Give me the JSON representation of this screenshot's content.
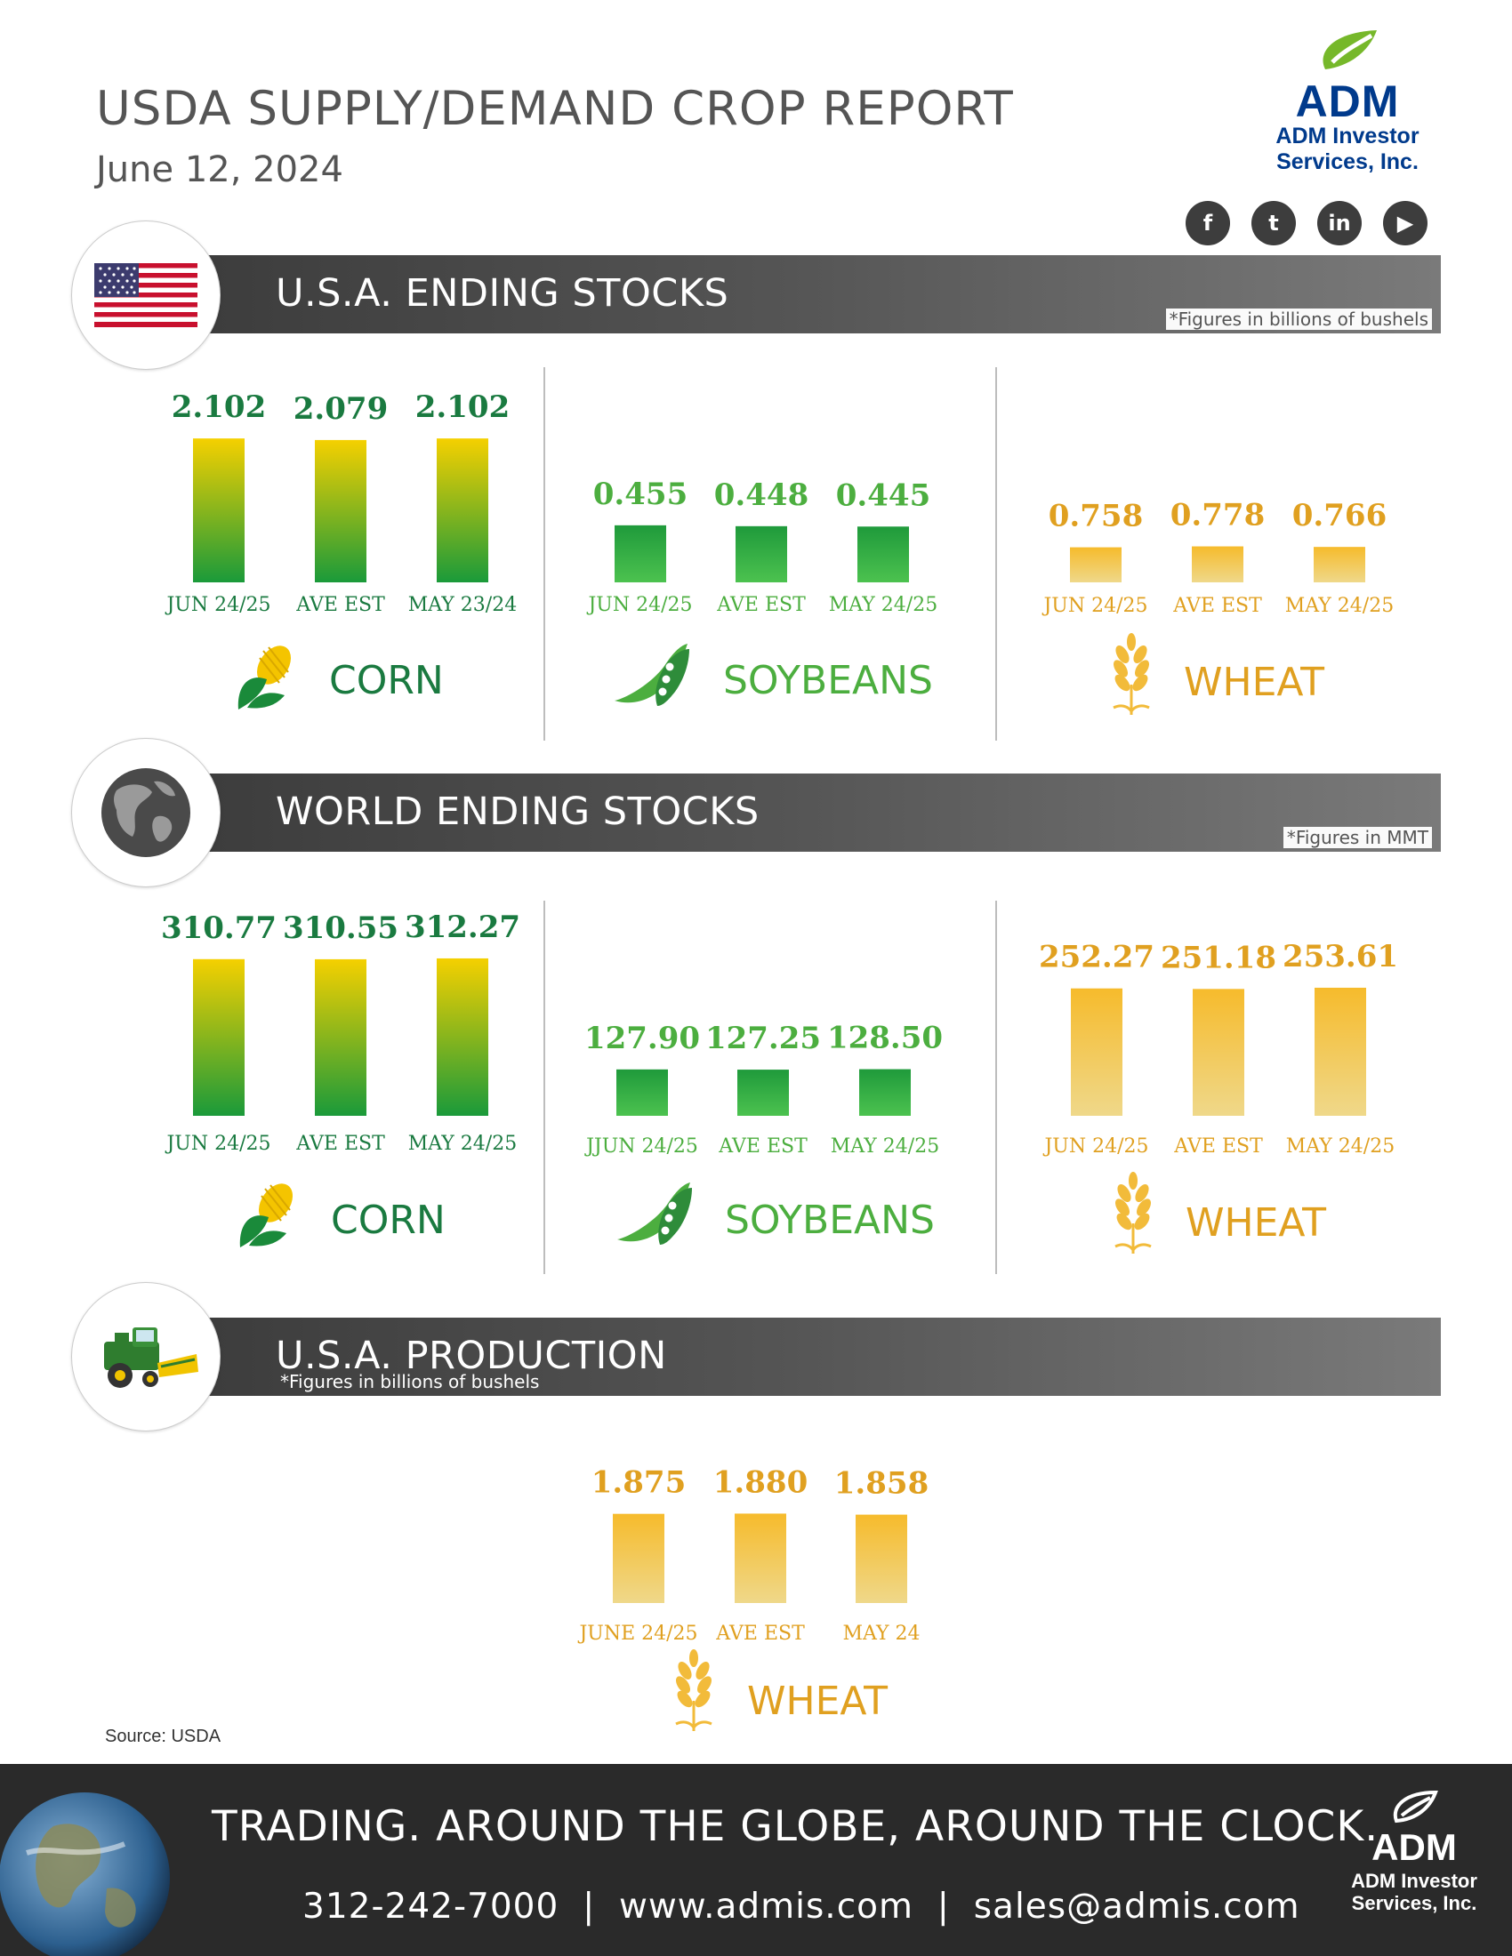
{
  "header": {
    "title": "USDA SUPPLY/DEMAND CROP REPORT",
    "date": "June 12, 2024",
    "logo_name": "ADM",
    "logo_sub": "ADM Investor\nServices, Inc.",
    "social_icons": [
      "facebook-icon",
      "twitter-icon",
      "linkedin-icon",
      "youtube-icon"
    ],
    "social_glyphs": [
      "f",
      "t",
      "in",
      "▶"
    ]
  },
  "sections": {
    "usa_ending": {
      "title": "U.S.A. ENDING STOCKS",
      "note": "*Figures in billions of bushels",
      "icon": "us-flag-icon"
    },
    "world_ending": {
      "title": "WORLD ENDING STOCKS",
      "note": "*Figures in MMT",
      "icon": "globe-icon"
    },
    "usa_production": {
      "title": "U.S.A. PRODUCTION",
      "note": "*Figures in billions of bushels",
      "icon": "combine-harvester-icon"
    }
  },
  "crop_labels": {
    "corn": "CORN",
    "soybeans": "SOYBEANS",
    "wheat": "WHEAT"
  },
  "colors": {
    "corn_top": "#f5d000",
    "corn_bottom": "#1a9a3a",
    "soy_top": "#1f9a3b",
    "soy_bottom": "#4cc24f",
    "wheat_top": "#f6bb2c",
    "wheat_bottom": "#efd88a",
    "corn_text": "#1a7a40",
    "soy_text": "#4cae3f",
    "wheat_text": "#e0a020"
  },
  "chart_data": [
    {
      "type": "bar",
      "section": "U.S.A. ENDING STOCKS",
      "crop": "CORN",
      "categories": [
        "JUN 24/25",
        "AVE EST",
        "MAY 23/24"
      ],
      "values": [
        2.102,
        2.079,
        2.102
      ],
      "labels": [
        "2.102",
        "2.079",
        "2.102"
      ]
    },
    {
      "type": "bar",
      "section": "U.S.A. ENDING STOCKS",
      "crop": "SOYBEANS",
      "categories": [
        "JUN 24/25",
        "AVE EST",
        "MAY 24/25"
      ],
      "values": [
        0.455,
        0.448,
        0.445
      ],
      "labels": [
        "0.455",
        "0.448",
        "0.445"
      ]
    },
    {
      "type": "bar",
      "section": "U.S.A. ENDING STOCKS",
      "crop": "WHEAT",
      "categories": [
        "JUN 24/25",
        "AVE EST",
        "MAY 24/25"
      ],
      "values": [
        0.758,
        0.778,
        0.766
      ],
      "labels": [
        "0.758",
        "0.778",
        "0.766"
      ]
    },
    {
      "type": "bar",
      "section": "WORLD ENDING STOCKS",
      "crop": "CORN",
      "categories": [
        "JUN 24/25",
        "AVE EST",
        "MAY 24/25"
      ],
      "values": [
        310.77,
        310.55,
        312.27
      ],
      "labels": [
        "310.77",
        "310.55",
        "312.27"
      ]
    },
    {
      "type": "bar",
      "section": "WORLD ENDING STOCKS",
      "crop": "SOYBEANS",
      "categories": [
        "JJUN 24/25",
        "AVE EST",
        "MAY 24/25"
      ],
      "values": [
        127.9,
        127.25,
        128.5
      ],
      "labels": [
        "127.90",
        "127.25",
        "128.50"
      ]
    },
    {
      "type": "bar",
      "section": "WORLD ENDING STOCKS",
      "crop": "WHEAT",
      "categories": [
        "JUN 24/25",
        "AVE EST",
        "MAY 24/25"
      ],
      "values": [
        252.27,
        251.18,
        253.61
      ],
      "labels": [
        "252.27",
        "251.18",
        "253.61"
      ]
    },
    {
      "type": "bar",
      "section": "U.S.A. PRODUCTION",
      "crop": "WHEAT",
      "categories": [
        "JUNE 24/25",
        "AVE EST",
        "MAY 24"
      ],
      "values": [
        1.875,
        1.88,
        1.858
      ],
      "labels": [
        "1.875",
        "1.880",
        "1.858"
      ]
    }
  ],
  "source": "Source: USDA",
  "footer": {
    "slogan": "TRADING. AROUND THE GLOBE, AROUND THE CLOCK.",
    "contact": "312-242-7000  |  www.admis.com  |  sales@admis.com",
    "logo_name": "ADM",
    "logo_sub": "ADM Investor\nServices, Inc."
  }
}
